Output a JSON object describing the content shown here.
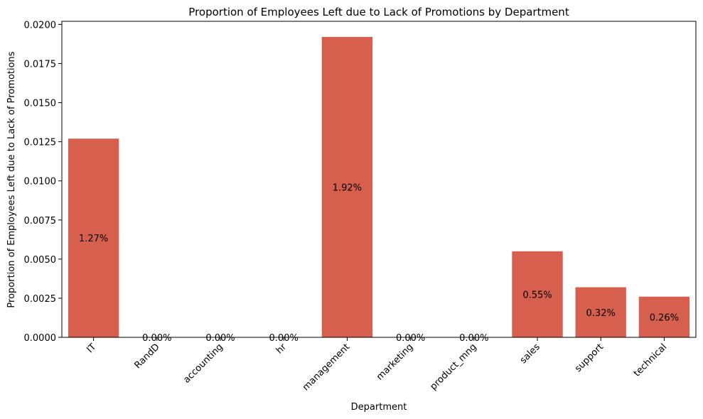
{
  "chart_data": {
    "type": "bar",
    "title": "Proportion of Employees Left due to Lack of Promotions by Department",
    "xlabel": "Department",
    "ylabel": "Proportion of Employees Left due to Lack of Promotions",
    "categories": [
      "IT",
      "RandD",
      "accounting",
      "hr",
      "management",
      "marketing",
      "product_mng",
      "sales",
      "support",
      "technical"
    ],
    "values": [
      0.0127,
      0.0,
      0.0,
      0.0,
      0.0192,
      0.0,
      0.0,
      0.0055,
      0.0032,
      0.0026
    ],
    "data_labels": [
      "1.27%",
      "0.00%",
      "0.00%",
      "0.00%",
      "1.92%",
      "0.00%",
      "0.00%",
      "0.55%",
      "0.32%",
      "0.26%"
    ],
    "ylim": [
      0,
      0.0202
    ],
    "yticks": [
      0.0,
      0.0025,
      0.005,
      0.0075,
      0.01,
      0.0125,
      0.015,
      0.0175,
      0.02
    ],
    "ytick_labels": [
      "0.0000",
      "0.0025",
      "0.0050",
      "0.0075",
      "0.0100",
      "0.0125",
      "0.0150",
      "0.0175",
      "0.0200"
    ],
    "grid": false,
    "bar_color": "#d65f4e"
  }
}
